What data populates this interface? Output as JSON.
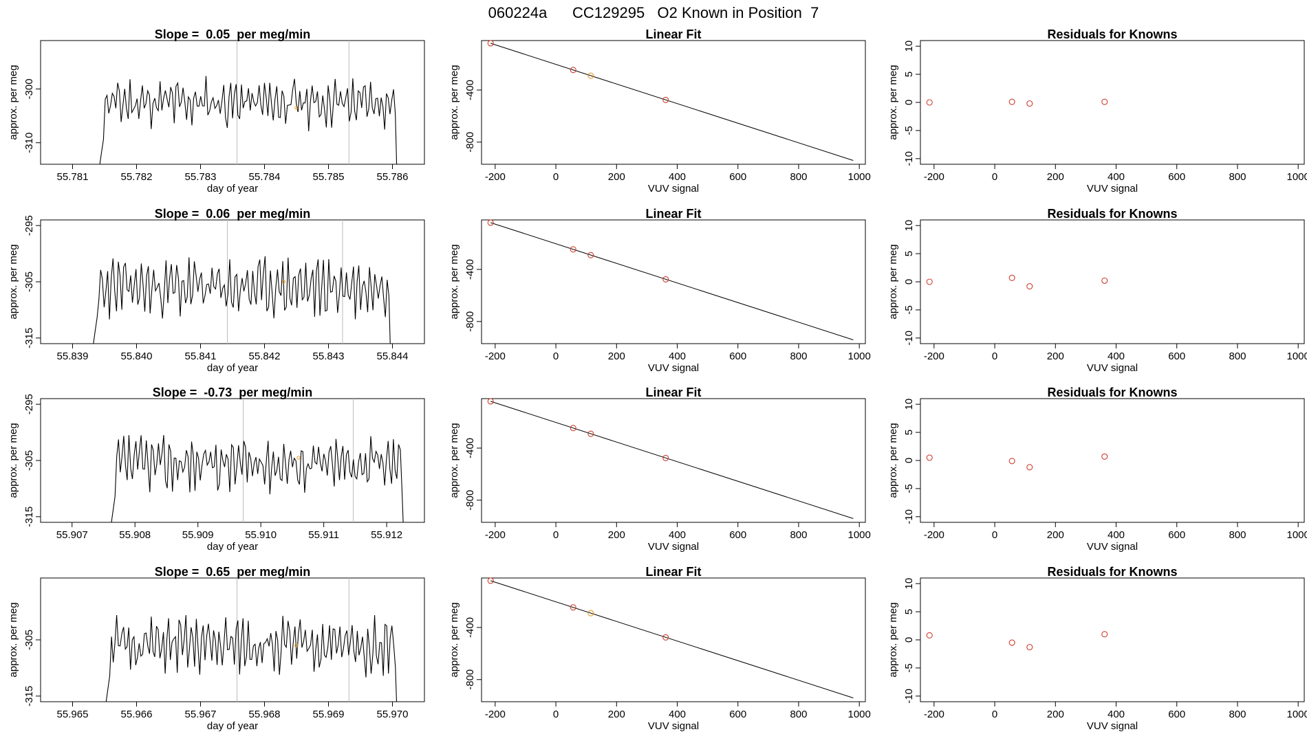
{
  "title": "060224a      CC129295   O2 Known in Position  7",
  "colors": {
    "trace": "#000000",
    "marker_red": "#cd3c2c",
    "marker_orange": "#e59a2a",
    "vline": "#bbbbbb",
    "axis": "#000000"
  },
  "chart_data": [
    {
      "row": 1,
      "timeseries": {
        "type": "line",
        "title": "Slope =  0.05  per meg/min",
        "xlabel": "day of year",
        "ylabel": "approx. per meg",
        "xlim": [
          55.7805,
          55.7865
        ],
        "ylim": [
          -314,
          -291
        ],
        "xticks": [
          55.781,
          55.782,
          55.783,
          55.784,
          55.785,
          55.786
        ],
        "xtick_labels": [
          "55.781",
          "55.782",
          "55.783",
          "55.784",
          "55.785",
          "55.786"
        ],
        "yticks": [
          -310,
          -300
        ],
        "ytick_labels": [
          "-310",
          "-300"
        ],
        "start": 55.7814,
        "end": 55.7861,
        "baseline": -302.5,
        "amplitude": 3.2,
        "seed": 11,
        "offset": 0,
        "vlines": [
          55.78357,
          55.78532
        ],
        "marker": {
          "x": 55.7845,
          "y": -303.5
        }
      },
      "fit": {
        "type": "line",
        "title": "Linear Fit",
        "xlabel": "VUV signal",
        "ylabel": "approx. per meg",
        "xlim": [
          -245,
          1020
        ],
        "ylim": [
          -970,
          -20
        ],
        "xticks": [
          -200,
          0,
          200,
          400,
          600,
          800,
          1000
        ],
        "xtick_labels": [
          "-200",
          "0",
          "200",
          "400",
          "600",
          "800",
          "1000"
        ],
        "yticks": [
          -800,
          -400
        ],
        "ytick_labels": [
          "-800",
          "-400"
        ],
        "line": {
          "x": [
            -215,
            980
          ],
          "y": [
            -41,
            -941
          ]
        },
        "points": {
          "x": [
            -215,
            57,
            115,
            362
          ],
          "y": [
            -41,
            -246,
            -290,
            -476
          ],
          "colors": [
            "#cd3c2c",
            "#cd3c2c",
            "#e59a2a",
            "#cd3c2c"
          ]
        }
      },
      "residuals": {
        "type": "scatter",
        "title": "Residuals for Knowns",
        "xlabel": "VUV signal",
        "ylabel": "approx. per meg",
        "xlim": [
          -245,
          1020
        ],
        "ylim": [
          -11,
          11
        ],
        "xticks": [
          -200,
          0,
          200,
          400,
          600,
          800,
          1000
        ],
        "xtick_labels": [
          "-200",
          "0",
          "200",
          "400",
          "600",
          "800",
          "1000"
        ],
        "yticks": [
          -10,
          -5,
          0,
          5,
          10
        ],
        "ytick_labels": [
          "-10",
          "-5",
          "0",
          "5",
          "10"
        ],
        "points": {
          "x": [
            -215,
            57,
            115,
            362
          ],
          "y": [
            0.0,
            0.1,
            -0.2,
            0.1
          ]
        }
      }
    },
    {
      "row": 2,
      "timeseries": {
        "type": "line",
        "title": "Slope =  0.06  per meg/min",
        "xlabel": "day of year",
        "ylabel": "approx. per meg",
        "xlim": [
          55.8385,
          55.8445
        ],
        "ylim": [
          -316,
          -294
        ],
        "xticks": [
          55.839,
          55.84,
          55.841,
          55.842,
          55.843,
          55.844
        ],
        "xtick_labels": [
          "55.839",
          "55.840",
          "55.841",
          "55.842",
          "55.843",
          "55.844"
        ],
        "yticks": [
          -315,
          -305,
          -295
        ],
        "ytick_labels": [
          "-315",
          "-305",
          "-295"
        ],
        "start": 55.8393,
        "end": 55.844,
        "baseline": -306,
        "amplitude": 3.6,
        "seed": 23,
        "offset": 0,
        "vlines": [
          55.84142,
          55.84322
        ],
        "marker": {
          "x": 55.8423,
          "y": -305
        }
      },
      "fit": {
        "type": "line",
        "title": "Linear Fit",
        "xlabel": "VUV signal",
        "ylabel": "approx. per meg",
        "xlim": [
          -245,
          1020
        ],
        "ylim": [
          -970,
          -20
        ],
        "xticks": [
          -200,
          0,
          200,
          400,
          600,
          800,
          1000
        ],
        "xtick_labels": [
          "-200",
          "0",
          "200",
          "400",
          "600",
          "800",
          "1000"
        ],
        "yticks": [
          -800,
          -400
        ],
        "ytick_labels": [
          "-800",
          "-400"
        ],
        "line": {
          "x": [
            -215,
            980
          ],
          "y": [
            -41,
            -941
          ]
        },
        "points": {
          "x": [
            -215,
            57,
            115,
            362
          ],
          "y": [
            -41,
            -246,
            -290,
            -476
          ],
          "colors": [
            "#cd3c2c",
            "#cd3c2c",
            "#cd3c2c",
            "#cd3c2c"
          ]
        }
      },
      "residuals": {
        "type": "scatter",
        "title": "Residuals for Knowns",
        "xlabel": "VUV signal",
        "ylabel": "approx. per meg",
        "xlim": [
          -245,
          1020
        ],
        "ylim": [
          -11,
          11
        ],
        "xticks": [
          -200,
          0,
          200,
          400,
          600,
          800,
          1000
        ],
        "xtick_labels": [
          "-200",
          "0",
          "200",
          "400",
          "600",
          "800",
          "1000"
        ],
        "yticks": [
          -10,
          -5,
          0,
          5,
          10
        ],
        "ytick_labels": [
          "-10",
          "-5",
          "0",
          "5",
          "10"
        ],
        "points": {
          "x": [
            -215,
            57,
            115,
            362
          ],
          "y": [
            0.0,
            0.7,
            -0.8,
            0.2
          ]
        }
      }
    },
    {
      "row": 3,
      "timeseries": {
        "type": "line",
        "title": "Slope =  -0.73  per meg/min",
        "xlabel": "day of year",
        "ylabel": "approx. per meg",
        "xlim": [
          55.9065,
          55.9126
        ],
        "ylim": [
          -316,
          -294
        ],
        "xticks": [
          55.907,
          55.908,
          55.909,
          55.91,
          55.911,
          55.912
        ],
        "xtick_labels": [
          "55.907",
          "55.908",
          "55.909",
          "55.910",
          "55.911",
          "55.912"
        ],
        "yticks": [
          -315,
          -305,
          -295
        ],
        "ytick_labels": [
          "-315",
          "-305",
          "-295"
        ],
        "start": 55.9076,
        "end": 55.9123,
        "baseline": -305.5,
        "amplitude": 3.4,
        "seed": 37,
        "offset": 0,
        "vlines": [
          55.90972,
          55.91147
        ],
        "marker": {
          "x": 55.9106,
          "y": -304.5
        }
      },
      "fit": {
        "type": "line",
        "title": "Linear Fit",
        "xlabel": "VUV signal",
        "ylabel": "approx. per meg",
        "xlim": [
          -245,
          1020
        ],
        "ylim": [
          -970,
          -20
        ],
        "xticks": [
          -200,
          0,
          200,
          400,
          600,
          800,
          1000
        ],
        "xtick_labels": [
          "-200",
          "0",
          "200",
          "400",
          "600",
          "800",
          "1000"
        ],
        "yticks": [
          -800,
          -400
        ],
        "ytick_labels": [
          "-800",
          "-400"
        ],
        "line": {
          "x": [
            -215,
            980
          ],
          "y": [
            -41,
            -941
          ]
        },
        "points": {
          "x": [
            -215,
            57,
            115,
            362
          ],
          "y": [
            -41,
            -246,
            -290,
            -476
          ],
          "colors": [
            "#cd3c2c",
            "#cd3c2c",
            "#cd3c2c",
            "#cd3c2c"
          ]
        }
      },
      "residuals": {
        "type": "scatter",
        "title": "Residuals for Knowns",
        "xlabel": "VUV signal",
        "ylabel": "approx. per meg",
        "xlim": [
          -245,
          1020
        ],
        "ylim": [
          -11,
          11
        ],
        "xticks": [
          -200,
          0,
          200,
          400,
          600,
          800,
          1000
        ],
        "xtick_labels": [
          "-200",
          "0",
          "200",
          "400",
          "600",
          "800",
          "1000"
        ],
        "yticks": [
          -10,
          -5,
          0,
          5,
          10
        ],
        "ytick_labels": [
          "-10",
          "-5",
          "0",
          "5",
          "10"
        ],
        "points": {
          "x": [
            -215,
            57,
            115,
            362
          ],
          "y": [
            0.5,
            -0.1,
            -1.2,
            0.7
          ]
        }
      }
    },
    {
      "row": 4,
      "timeseries": {
        "type": "line",
        "title": "Slope =  0.65  per meg/min",
        "xlabel": "day of year",
        "ylabel": "approx. per meg",
        "xlim": [
          55.9645,
          55.9705
        ],
        "ylim": [
          -316,
          -294
        ],
        "xticks": [
          55.965,
          55.966,
          55.967,
          55.968,
          55.969,
          55.97
        ],
        "xtick_labels": [
          "55.965",
          "55.966",
          "55.967",
          "55.968",
          "55.969",
          "55.970"
        ],
        "yticks": [
          -315,
          -305
        ],
        "ytick_labels": [
          "-315",
          "-305"
        ],
        "start": 55.9655,
        "end": 55.9701,
        "baseline": -306,
        "amplitude": 3.4,
        "seed": 51,
        "offset": 0,
        "vlines": [
          55.96757,
          55.96932
        ],
        "marker": {
          "x": 55.9685,
          "y": -306
        }
      },
      "fit": {
        "type": "line",
        "title": "Linear Fit",
        "xlabel": "VUV signal",
        "ylabel": "approx. per meg",
        "xlim": [
          -245,
          1020
        ],
        "ylim": [
          -970,
          -20
        ],
        "xticks": [
          -200,
          0,
          200,
          400,
          600,
          800,
          1000
        ],
        "xtick_labels": [
          "-200",
          "0",
          "200",
          "400",
          "600",
          "800",
          "1000"
        ],
        "yticks": [
          -800,
          -400
        ],
        "ytick_labels": [
          "-800",
          "-400"
        ],
        "line": {
          "x": [
            -215,
            980
          ],
          "y": [
            -41,
            -941
          ]
        },
        "points": {
          "x": [
            -215,
            57,
            115,
            362
          ],
          "y": [
            -41,
            -246,
            -290,
            -476
          ],
          "colors": [
            "#cd3c2c",
            "#cd3c2c",
            "#e59a2a",
            "#cd3c2c"
          ]
        }
      },
      "residuals": {
        "type": "scatter",
        "title": "Residuals for Knowns",
        "xlabel": "VUV signal",
        "ylabel": "approx. per meg",
        "xlim": [
          -245,
          1020
        ],
        "ylim": [
          -11,
          11
        ],
        "xticks": [
          -200,
          0,
          200,
          400,
          600,
          800,
          1000
        ],
        "xtick_labels": [
          "-200",
          "0",
          "200",
          "400",
          "600",
          "800",
          "1000"
        ],
        "yticks": [
          -10,
          -5,
          0,
          5,
          10
        ],
        "ytick_labels": [
          "-10",
          "-5",
          "0",
          "5",
          "10"
        ],
        "points": {
          "x": [
            -215,
            57,
            115,
            362
          ],
          "y": [
            0.8,
            -0.5,
            -1.3,
            1.0
          ]
        }
      }
    }
  ]
}
